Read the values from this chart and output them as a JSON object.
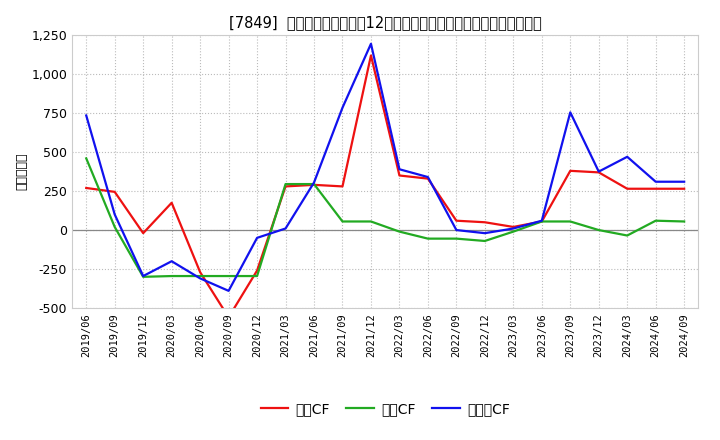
{
  "title": "[7849]  キャッシュフローの12か月移動合計の対前年同期増減額の推移",
  "ylabel": "（百万円）",
  "background_color": "#ffffff",
  "grid_color": "#bbbbbb",
  "xlabels": [
    "2019/06",
    "2019/09",
    "2019/12",
    "2020/03",
    "2020/06",
    "2020/09",
    "2020/12",
    "2021/03",
    "2021/06",
    "2021/09",
    "2021/12",
    "2022/03",
    "2022/06",
    "2022/09",
    "2022/12",
    "2023/03",
    "2023/06",
    "2023/09",
    "2023/12",
    "2024/03",
    "2024/06",
    "2024/09"
  ],
  "operating_cf": [
    270,
    245,
    -20,
    175,
    -270,
    -560,
    -260,
    280,
    290,
    280,
    1120,
    350,
    330,
    60,
    50,
    20,
    55,
    380,
    370,
    265,
    265,
    265
  ],
  "investing_cf": [
    460,
    20,
    -300,
    -295,
    -295,
    -295,
    -295,
    295,
    295,
    55,
    55,
    -10,
    -55,
    -55,
    -70,
    -10,
    55,
    55,
    0,
    -35,
    60,
    55
  ],
  "free_cf": [
    735,
    100,
    -295,
    -200,
    -310,
    -390,
    -50,
    10,
    305,
    785,
    1195,
    390,
    340,
    0,
    -20,
    10,
    60,
    755,
    375,
    470,
    310,
    310
  ],
  "ylim": [
    -500,
    1250
  ],
  "yticks": [
    -500,
    -250,
    0,
    250,
    500,
    750,
    1000,
    1250
  ],
  "line_colors": {
    "operating": "#ee1111",
    "investing": "#22aa22",
    "free": "#1111ee"
  },
  "legend_labels": [
    "営業CF",
    "投資CF",
    "フリーCF"
  ]
}
